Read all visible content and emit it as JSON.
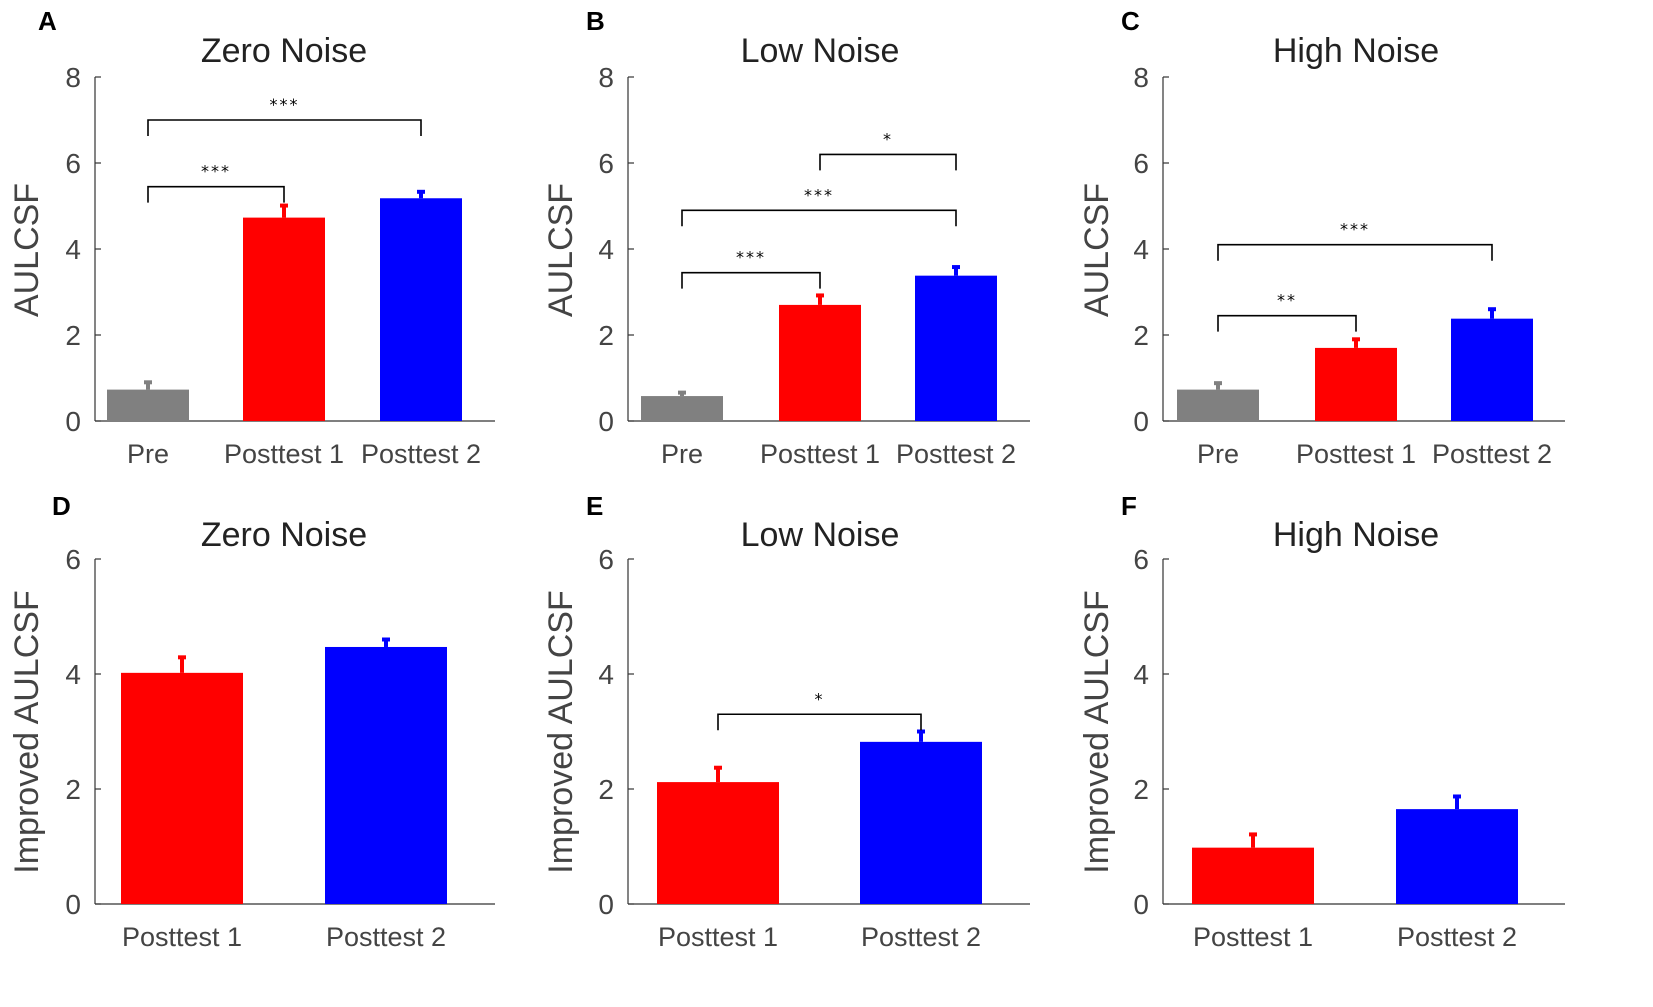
{
  "figure_name": "aulcsf-bar-figure",
  "chart_data": [
    {
      "panel": "A",
      "type": "bar",
      "title": "Zero Noise",
      "ylabel": "AULCSF",
      "ylim": [
        0,
        8
      ],
      "yticks": [
        0,
        2,
        4,
        6,
        8
      ],
      "categories": [
        "Pre",
        "Posttest 1",
        "Posttest 2"
      ],
      "values": [
        0.73,
        4.73,
        5.18
      ],
      "errors": [
        0.17,
        0.28,
        0.15
      ],
      "colors": [
        "#808080",
        "#ff0000",
        "#0000ff"
      ],
      "significance": [
        {
          "from": 0,
          "to": 1,
          "y": 5.45,
          "label": "***"
        },
        {
          "from": 0,
          "to": 2,
          "y": 7.0,
          "label": "***"
        }
      ]
    },
    {
      "panel": "B",
      "type": "bar",
      "title": "Low Noise",
      "ylabel": "AULCSF",
      "ylim": [
        0,
        8
      ],
      "yticks": [
        0,
        2,
        4,
        6,
        8
      ],
      "categories": [
        "Pre",
        "Posttest 1",
        "Posttest 2"
      ],
      "values": [
        0.58,
        2.7,
        3.38
      ],
      "errors": [
        0.08,
        0.22,
        0.2
      ],
      "colors": [
        "#808080",
        "#ff0000",
        "#0000ff"
      ],
      "significance": [
        {
          "from": 1,
          "to": 2,
          "y": 6.2,
          "label": "*"
        },
        {
          "from": 0,
          "to": 2,
          "y": 4.9,
          "label": "***"
        },
        {
          "from": 0,
          "to": 1,
          "y": 3.45,
          "label": "***"
        }
      ]
    },
    {
      "panel": "C",
      "type": "bar",
      "title": "High Noise",
      "ylabel": "AULCSF",
      "ylim": [
        0,
        8
      ],
      "yticks": [
        0,
        2,
        4,
        6,
        8
      ],
      "categories": [
        "Pre",
        "Posttest 1",
        "Posttest 2"
      ],
      "values": [
        0.73,
        1.7,
        2.38
      ],
      "errors": [
        0.15,
        0.2,
        0.22
      ],
      "colors": [
        "#808080",
        "#ff0000",
        "#0000ff"
      ],
      "significance": [
        {
          "from": 0,
          "to": 2,
          "y": 4.1,
          "label": "***"
        },
        {
          "from": 0,
          "to": 1,
          "y": 2.45,
          "label": "**"
        }
      ]
    },
    {
      "panel": "D",
      "type": "bar",
      "title": "Zero Noise",
      "ylabel": "Improved AULCSF",
      "ylim": [
        0,
        6
      ],
      "yticks": [
        0,
        2,
        4,
        6
      ],
      "categories": [
        "Posttest 1",
        "Posttest 2"
      ],
      "values": [
        4.02,
        4.47
      ],
      "errors": [
        0.27,
        0.13
      ],
      "colors": [
        "#ff0000",
        "#0000ff"
      ],
      "significance": []
    },
    {
      "panel": "E",
      "type": "bar",
      "title": "Low Noise",
      "ylabel": "Improved AULCSF",
      "ylim": [
        0,
        6
      ],
      "yticks": [
        0,
        2,
        4,
        6
      ],
      "categories": [
        "Posttest 1",
        "Posttest 2"
      ],
      "values": [
        2.12,
        2.82
      ],
      "errors": [
        0.25,
        0.18
      ],
      "colors": [
        "#ff0000",
        "#0000ff"
      ],
      "significance": [
        {
          "from": 0,
          "to": 1,
          "y": 3.3,
          "label": "*"
        }
      ]
    },
    {
      "panel": "F",
      "type": "bar",
      "title": "High Noise",
      "ylabel": "Improved AULCSF",
      "ylim": [
        0,
        6
      ],
      "yticks": [
        0,
        2,
        4,
        6
      ],
      "categories": [
        "Posttest 1",
        "Posttest 2"
      ],
      "values": [
        0.98,
        1.65
      ],
      "errors": [
        0.23,
        0.22
      ],
      "colors": [
        "#ff0000",
        "#0000ff"
      ],
      "significance": []
    }
  ]
}
